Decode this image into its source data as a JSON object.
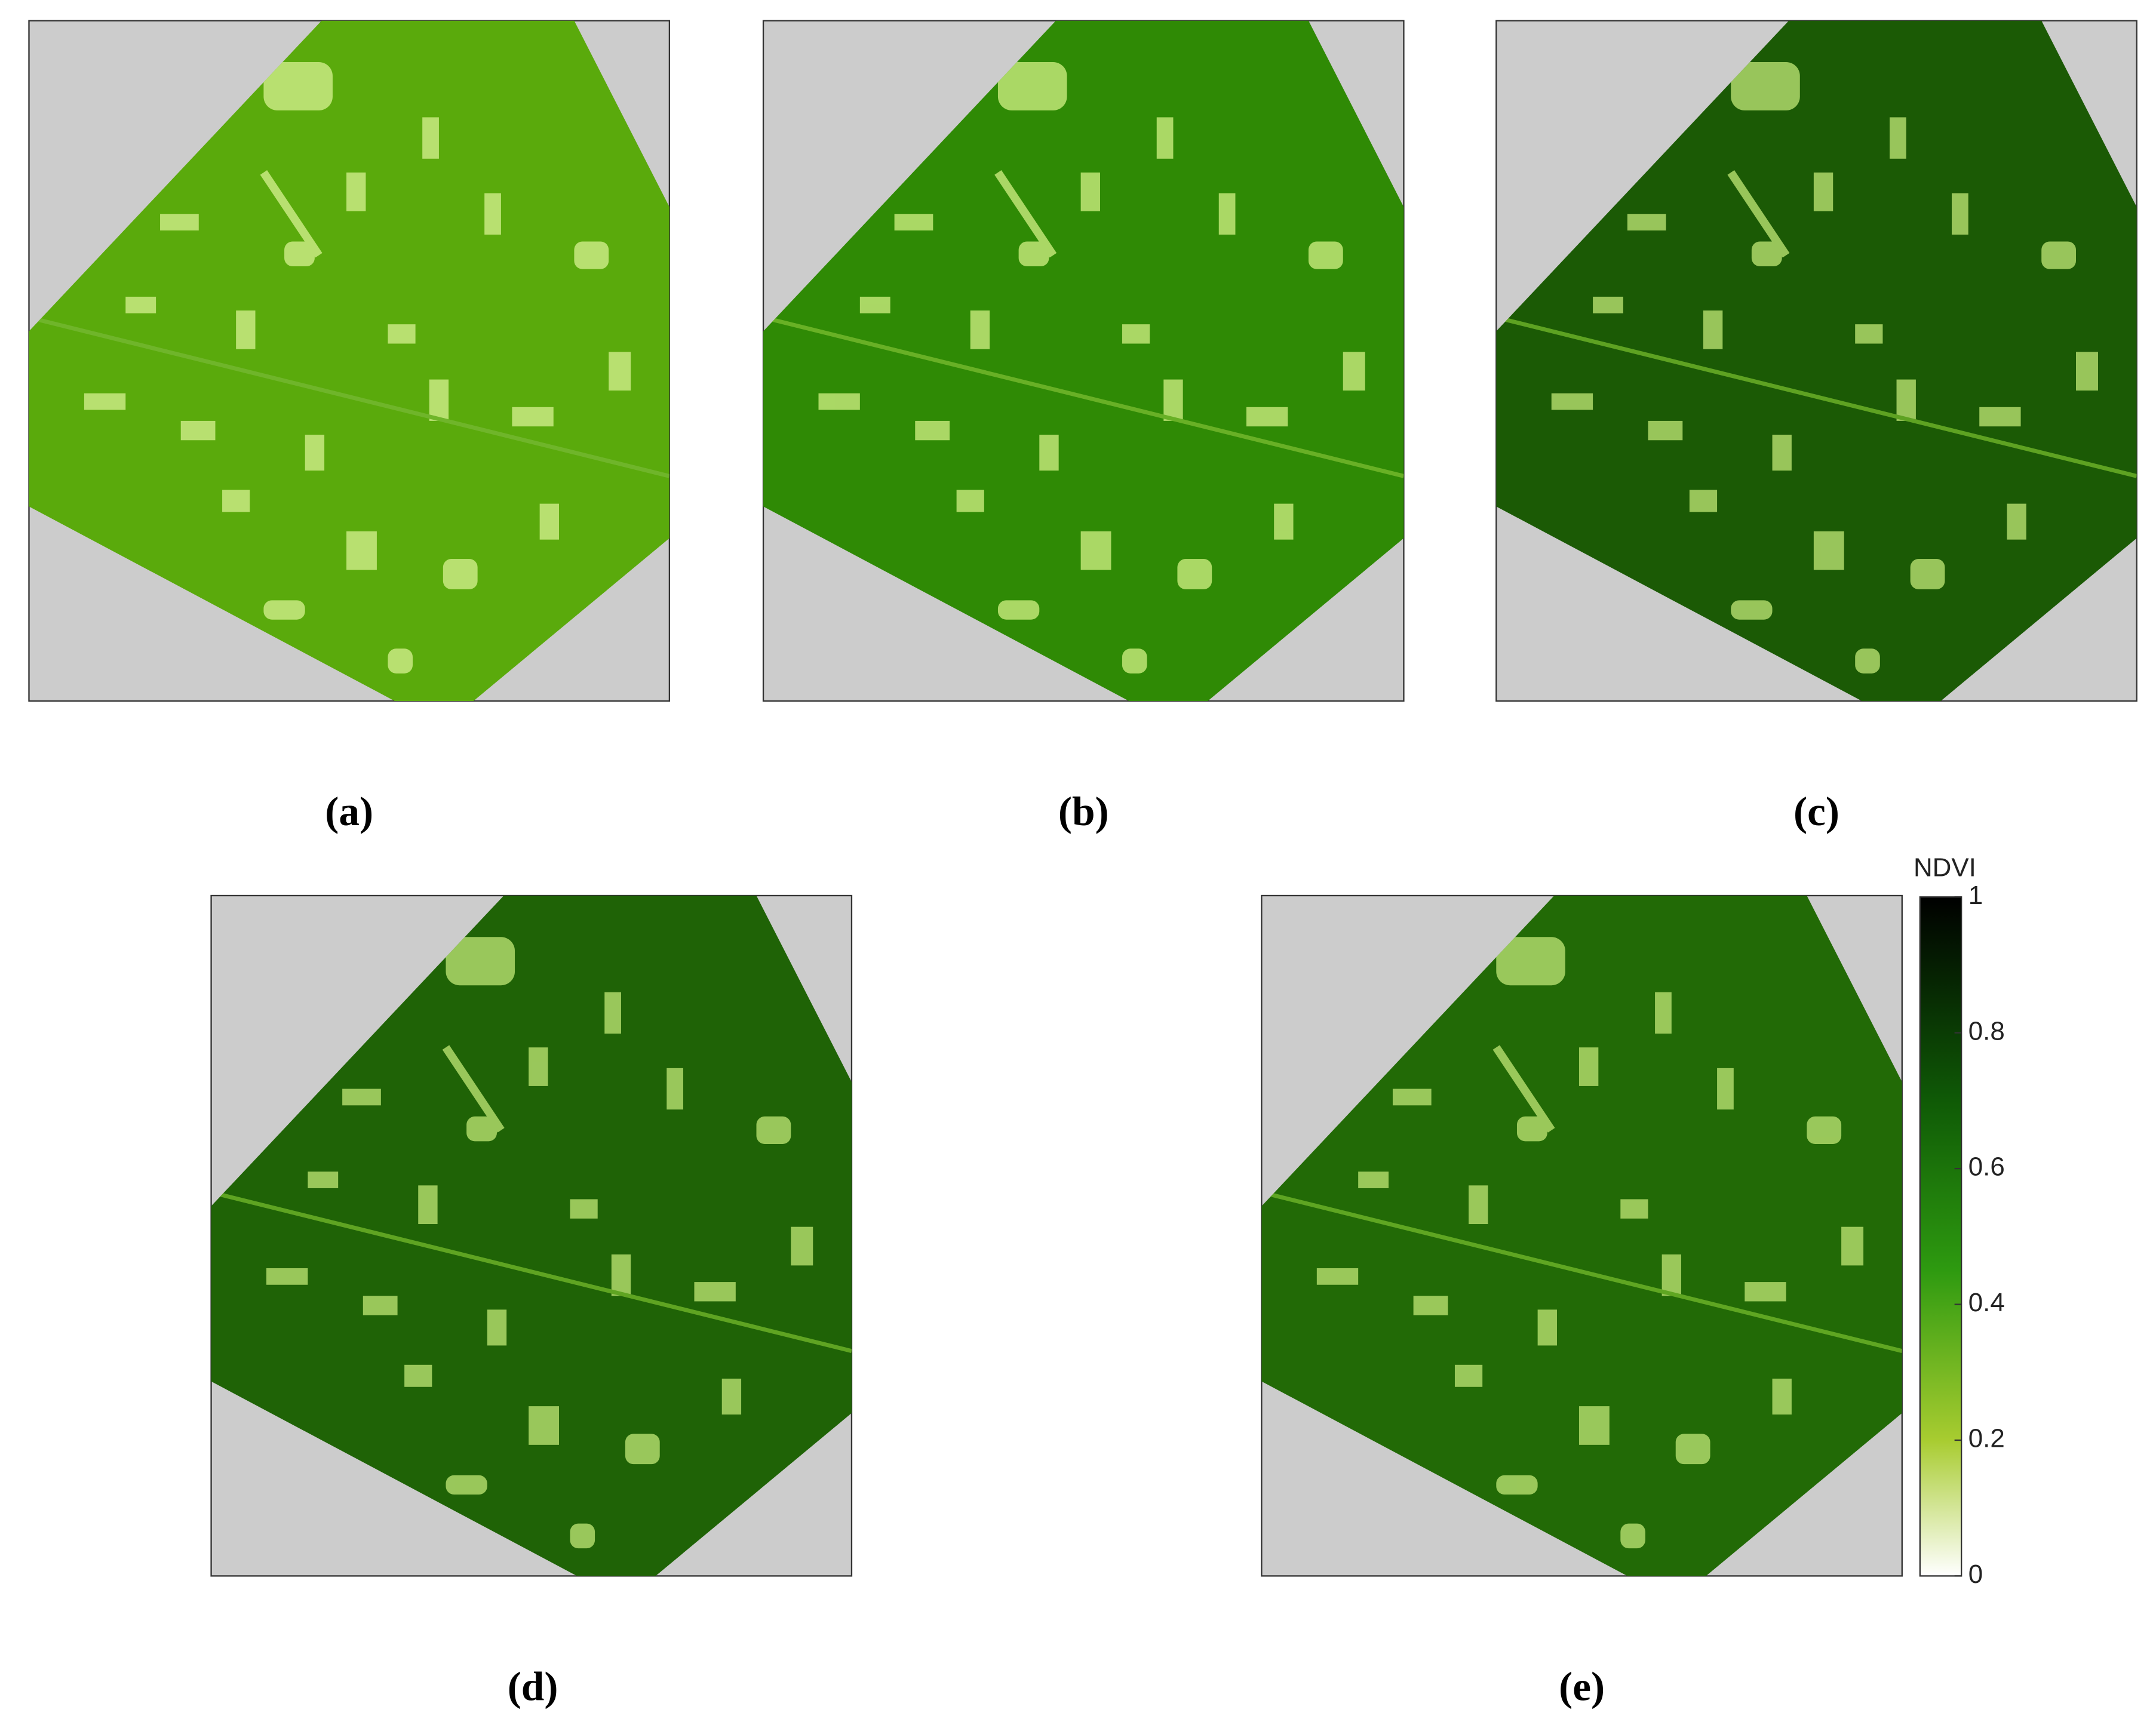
{
  "panels": [
    {
      "label": "(a)"
    },
    {
      "label": "(b)"
    },
    {
      "label": "(c)"
    },
    {
      "label": "(d)"
    },
    {
      "label": "(e)"
    }
  ],
  "colorbar": {
    "title": "NDVI",
    "ylim": [
      0,
      1
    ],
    "yticks": [
      0,
      0.2,
      0.4,
      0.6,
      0.8,
      1
    ]
  }
}
